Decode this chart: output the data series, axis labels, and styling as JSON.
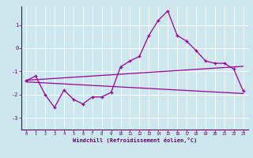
{
  "title": "",
  "xlabel": "Windchill (Refroidissement éolien,°C)",
  "background_color": "#cce8ee",
  "line_color": "#990099",
  "xlim": [
    -0.5,
    23.5
  ],
  "ylim": [
    -3.5,
    1.8
  ],
  "yticks": [
    -3,
    -2,
    -1,
    0,
    1
  ],
  "xticks": [
    0,
    1,
    2,
    3,
    4,
    5,
    6,
    7,
    8,
    9,
    10,
    11,
    12,
    13,
    14,
    15,
    16,
    17,
    18,
    19,
    20,
    21,
    22,
    23
  ],
  "series1_x": [
    0,
    1,
    2,
    3,
    4,
    5,
    6,
    7,
    8,
    9,
    10,
    11,
    12,
    13,
    14,
    15,
    16,
    17,
    18,
    19,
    20,
    21,
    22,
    23
  ],
  "series1_y": [
    -1.4,
    -1.2,
    -2.0,
    -2.55,
    -1.8,
    -2.2,
    -2.4,
    -2.1,
    -2.1,
    -1.9,
    -0.8,
    -0.55,
    -0.35,
    0.55,
    1.2,
    1.6,
    0.55,
    0.3,
    -0.1,
    -0.55,
    -0.65,
    -0.65,
    -0.9,
    -1.85
  ],
  "line1_x": [
    0,
    23
  ],
  "line1_y": [
    -1.38,
    -0.78
  ],
  "line2_x": [
    0,
    23
  ],
  "line2_y": [
    -1.45,
    -1.95
  ]
}
